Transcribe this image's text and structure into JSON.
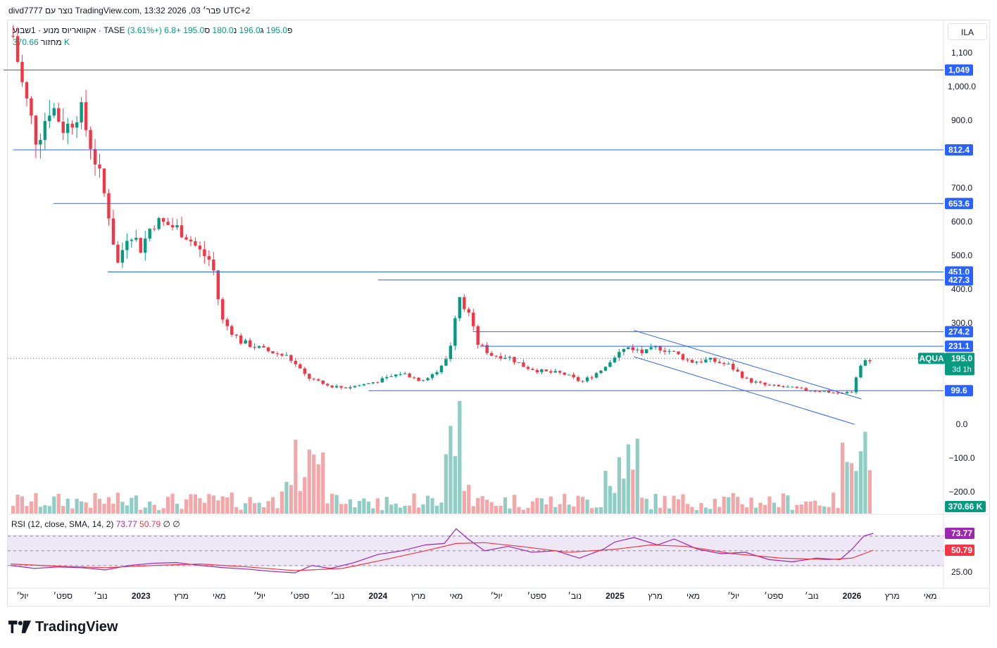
{
  "header": {
    "created_by": "divd7777 נוצר עם TradingView.com, 13:32 2026 ,03 פבר׳ UTC+2"
  },
  "legend": {
    "symbol": "אקוואריוס מנוע · 1שבוע · TASE",
    "open_label": "פ",
    "open": "195.0",
    "high_label": "ג",
    "high": "196.0",
    "low_label": "נ",
    "low": "180.0",
    "close_label": "ס",
    "close": "195.0",
    "change": "+6.8 (+3.61%)",
    "volume_label": "מחזור",
    "volume": "370.66 K"
  },
  "currency": "ILA",
  "rsi_legend": {
    "name": "RSI (12, close, SMA, 14, 2)",
    "rsi": "73.77",
    "ma": "50.79",
    "empty1": "∅",
    "empty2": "∅"
  },
  "brand": "TradingView",
  "colors": {
    "up": "#089981",
    "down": "#f23645",
    "vol_up": "#8fcdc5",
    "vol_down": "#f4a7a9",
    "line": "#2962ff",
    "rsi": "#9c27b0",
    "rsi_ma": "#f23645",
    "rsi_band": "#ede7f6",
    "label_bg": "#2962ff",
    "price_label": "#089981"
  },
  "chart_data": {
    "type": "candlestick",
    "timeframe": "1W",
    "price_axis_ticks": [
      "1,100",
      "1,000.0",
      "900.0",
      "700.0",
      "600.0",
      "500.0",
      "400.0",
      "300.0",
      "0.0",
      "−100.0",
      "−200.0"
    ],
    "time_axis_labels": [
      {
        "label": "יול׳",
        "date": 2022.5
      },
      {
        "label": "ספט׳",
        "date": 2022.67
      },
      {
        "label": "נוב׳",
        "date": 2022.83
      },
      {
        "label": "2023",
        "date": 2023.0
      },
      {
        "label": "מרץ",
        "date": 2023.17
      },
      {
        "label": "מאי",
        "date": 2023.33
      },
      {
        "label": "יול׳",
        "date": 2023.5
      },
      {
        "label": "ספט׳",
        "date": 2023.67
      },
      {
        "label": "נוב׳",
        "date": 2023.83
      },
      {
        "label": "2024",
        "date": 2024.0
      },
      {
        "label": "מרץ",
        "date": 2024.17
      },
      {
        "label": "מאי",
        "date": 2024.33
      },
      {
        "label": "יול׳",
        "date": 2024.5
      },
      {
        "label": "ספט׳",
        "date": 2024.67
      },
      {
        "label": "נוב׳",
        "date": 2024.83
      },
      {
        "label": "2025",
        "date": 2025.0
      },
      {
        "label": "מרץ",
        "date": 2025.17
      },
      {
        "label": "מאי",
        "date": 2025.33
      },
      {
        "label": "יול׳",
        "date": 2025.5
      },
      {
        "label": "ספט׳",
        "date": 2025.67
      },
      {
        "label": "נוב׳",
        "date": 2025.83
      },
      {
        "label": "2026",
        "date": 2026.0
      },
      {
        "label": "מרץ",
        "date": 2026.17
      },
      {
        "label": "מאי",
        "date": 2026.33
      }
    ],
    "horizontal_levels": [
      {
        "price": 1049,
        "label": "1,049",
        "from": 2022.42
      },
      {
        "price": 812.4,
        "label": "812.4",
        "from": 2022.46
      },
      {
        "price": 653.6,
        "label": "653.6",
        "from": 2022.63
      },
      {
        "price": 451.0,
        "label": "451.0",
        "from": 2022.86
      },
      {
        "price": 427.3,
        "label": "427.3",
        "from": 2024.0
      },
      {
        "price": 274.2,
        "label": "274.2",
        "from": 2024.4
      },
      {
        "price": 231.1,
        "label": "231.1",
        "from": 2024.43
      },
      {
        "price": 99.6,
        "label": "99.6",
        "from": 2023.96
      }
    ],
    "trend_channel": [
      {
        "from": [
          2025.08,
          278
        ],
        "to": [
          2026.04,
          75
        ]
      },
      {
        "from": [
          2025.08,
          200
        ],
        "to": [
          2026.01,
          0
        ]
      }
    ],
    "current_price": {
      "ticker": "AQUA",
      "price": "195.0",
      "countdown": "3d 1h"
    },
    "volume_label": "370.66 K",
    "rsi_levels": [
      {
        "value": 73.77,
        "label": "73.77"
      },
      {
        "value": 50.79,
        "label": "50.79"
      },
      {
        "value": 25,
        "label": "25.00"
      }
    ],
    "rsi_band": [
      30,
      70
    ],
    "rsi_series": [
      [
        2022.45,
        30
      ],
      [
        2022.55,
        26
      ],
      [
        2022.65,
        28
      ],
      [
        2022.75,
        27
      ],
      [
        2022.85,
        24
      ],
      [
        2022.95,
        30
      ],
      [
        2023.05,
        33
      ],
      [
        2023.15,
        34
      ],
      [
        2023.25,
        30
      ],
      [
        2023.35,
        27
      ],
      [
        2023.45,
        25
      ],
      [
        2023.55,
        22
      ],
      [
        2023.65,
        20
      ],
      [
        2023.72,
        30
      ],
      [
        2023.8,
        26
      ],
      [
        2023.9,
        34
      ],
      [
        2024.0,
        45
      ],
      [
        2024.1,
        50
      ],
      [
        2024.2,
        58
      ],
      [
        2024.28,
        60
      ],
      [
        2024.33,
        80
      ],
      [
        2024.38,
        66
      ],
      [
        2024.45,
        50
      ],
      [
        2024.55,
        56
      ],
      [
        2024.65,
        48
      ],
      [
        2024.75,
        50
      ],
      [
        2024.85,
        40
      ],
      [
        2024.95,
        52
      ],
      [
        2025.0,
        62
      ],
      [
        2025.08,
        68
      ],
      [
        2025.18,
        58
      ],
      [
        2025.25,
        66
      ],
      [
        2025.35,
        52
      ],
      [
        2025.45,
        46
      ],
      [
        2025.55,
        48
      ],
      [
        2025.65,
        38
      ],
      [
        2025.75,
        35
      ],
      [
        2025.85,
        40
      ],
      [
        2025.95,
        38
      ],
      [
        2026.0,
        52
      ],
      [
        2026.05,
        70
      ],
      [
        2026.09,
        73.77
      ]
    ],
    "rsi_ma_series": [
      [
        2022.45,
        32
      ],
      [
        2022.65,
        29
      ],
      [
        2022.85,
        27
      ],
      [
        2023.05,
        30
      ],
      [
        2023.25,
        32
      ],
      [
        2023.45,
        28
      ],
      [
        2023.65,
        23
      ],
      [
        2023.85,
        26
      ],
      [
        2024.0,
        36
      ],
      [
        2024.2,
        50
      ],
      [
        2024.33,
        60
      ],
      [
        2024.45,
        61
      ],
      [
        2024.6,
        56
      ],
      [
        2024.8,
        48
      ],
      [
        2025.0,
        52
      ],
      [
        2025.15,
        58
      ],
      [
        2025.3,
        56
      ],
      [
        2025.5,
        46
      ],
      [
        2025.7,
        40
      ],
      [
        2025.9,
        38
      ],
      [
        2026.0,
        40
      ],
      [
        2026.09,
        50.79
      ]
    ],
    "price_anchors": [
      [
        2022.46,
        1150
      ],
      [
        2022.5,
        1000
      ],
      [
        2022.56,
        840
      ],
      [
        2022.62,
        950
      ],
      [
        2022.68,
        870
      ],
      [
        2022.74,
        940
      ],
      [
        2022.8,
        800
      ],
      [
        2022.86,
        640
      ],
      [
        2022.9,
        470
      ],
      [
        2022.95,
        580
      ],
      [
        2023.0,
        520
      ],
      [
        2023.05,
        600
      ],
      [
        2023.12,
        590
      ],
      [
        2023.18,
        570
      ],
      [
        2023.25,
        510
      ],
      [
        2023.3,
        480
      ],
      [
        2023.34,
        310
      ],
      [
        2023.42,
        245
      ],
      [
        2023.52,
        220
      ],
      [
        2023.62,
        200
      ],
      [
        2023.7,
        140
      ],
      [
        2023.78,
        115
      ],
      [
        2023.86,
        108
      ],
      [
        2023.94,
        118
      ],
      [
        2024.02,
        132
      ],
      [
        2024.1,
        152
      ],
      [
        2024.18,
        130
      ],
      [
        2024.26,
        160
      ],
      [
        2024.3,
        210
      ],
      [
        2024.34,
        390
      ],
      [
        2024.38,
        330
      ],
      [
        2024.42,
        240
      ],
      [
        2024.48,
        205
      ],
      [
        2024.55,
        200
      ],
      [
        2024.62,
        170
      ],
      [
        2024.7,
        155
      ],
      [
        2024.78,
        150
      ],
      [
        2024.86,
        125
      ],
      [
        2024.94,
        160
      ],
      [
        2025.0,
        205
      ],
      [
        2025.06,
        230
      ],
      [
        2025.12,
        210
      ],
      [
        2025.18,
        228
      ],
      [
        2025.24,
        215
      ],
      [
        2025.32,
        185
      ],
      [
        2025.4,
        190
      ],
      [
        2025.48,
        175
      ],
      [
        2025.56,
        130
      ],
      [
        2025.64,
        115
      ],
      [
        2025.72,
        110
      ],
      [
        2025.8,
        102
      ],
      [
        2025.88,
        98
      ],
      [
        2025.96,
        90
      ],
      [
        2026.0,
        98
      ],
      [
        2026.03,
        170
      ],
      [
        2026.06,
        190
      ],
      [
        2026.09,
        195
      ]
    ]
  }
}
